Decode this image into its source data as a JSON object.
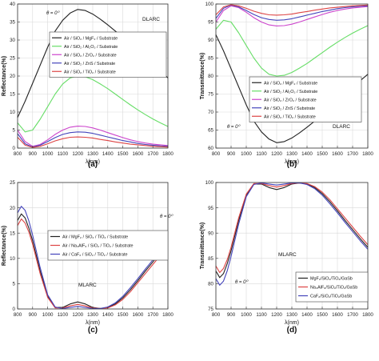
{
  "chart_data": [
    {
      "type": "line",
      "panel_label": "(a)",
      "theta_label": "θ = 0⁰",
      "annotation": "DLARC",
      "xlabel": "λ(nm)",
      "ylabel": "Reflectance(%)",
      "xlim": [
        800,
        1800
      ],
      "ylim": [
        0,
        40
      ],
      "xticks": [
        800,
        900,
        1000,
        1100,
        1200,
        1300,
        1400,
        1500,
        1600,
        1700,
        1800
      ],
      "yticks": [
        0,
        5,
        10,
        15,
        20,
        25,
        30,
        35,
        40
      ],
      "grid": true,
      "legend_position": "upper-center",
      "series": [
        {
          "name": "Air / SiO₂ / MgF₂ / Substrate",
          "color": "#222222",
          "x": [
            800,
            850,
            900,
            950,
            1000,
            1050,
            1100,
            1150,
            1200,
            1250,
            1300,
            1350,
            1400,
            1450,
            1500,
            1550,
            1600,
            1650,
            1700,
            1750,
            1800
          ],
          "y": [
            8.5,
            13,
            18,
            23,
            28,
            32.5,
            35.5,
            37.5,
            38.5,
            38.2,
            37.2,
            35.8,
            34.2,
            32.5,
            30.7,
            28.9,
            27,
            25.1,
            23.2,
            21.3,
            19.5
          ]
        },
        {
          "name": "Air / SiO₂ / Al₂O₃ / Substrate",
          "color": "#66dd66",
          "x": [
            800,
            850,
            900,
            950,
            1000,
            1050,
            1100,
            1150,
            1200,
            1250,
            1300,
            1350,
            1400,
            1450,
            1500,
            1550,
            1600,
            1650,
            1700,
            1750,
            1800
          ],
          "y": [
            7,
            4.5,
            5,
            8,
            11.5,
            15,
            17.8,
            19.5,
            20,
            19.8,
            19,
            17.8,
            16.5,
            15,
            13.5,
            12,
            10.6,
            9.3,
            8.1,
            7,
            6
          ]
        },
        {
          "name": "Air / SiO₂ / ZrO₂ / Substrate",
          "color": "#cc44cc",
          "x": [
            800,
            850,
            900,
            950,
            1000,
            1050,
            1100,
            1150,
            1200,
            1250,
            1300,
            1350,
            1400,
            1450,
            1500,
            1550,
            1600,
            1650,
            1700,
            1750,
            1800
          ],
          "y": [
            5,
            1.8,
            0.5,
            1,
            2.3,
            3.8,
            5,
            5.8,
            6.1,
            6,
            5.6,
            5,
            4.3,
            3.6,
            2.9,
            2.3,
            1.8,
            1.4,
            1.1,
            0.9,
            0.7
          ]
        },
        {
          "name": "Air / SiO₂ / ZnS / Substrate",
          "color": "#4444bb",
          "x": [
            800,
            850,
            900,
            950,
            1000,
            1050,
            1100,
            1150,
            1200,
            1250,
            1300,
            1350,
            1400,
            1450,
            1500,
            1550,
            1600,
            1650,
            1700,
            1750,
            1800
          ],
          "y": [
            4,
            1.2,
            0.3,
            0.8,
            1.8,
            2.9,
            3.8,
            4.3,
            4.5,
            4.4,
            4.1,
            3.6,
            3.1,
            2.6,
            2.1,
            1.7,
            1.3,
            1,
            0.8,
            0.6,
            0.5
          ]
        },
        {
          "name": "Air / SiO₂ / TiO₂ / Substrate",
          "color": "#dd4444",
          "x": [
            800,
            850,
            900,
            950,
            1000,
            1050,
            1100,
            1150,
            1200,
            1250,
            1300,
            1350,
            1400,
            1450,
            1500,
            1550,
            1600,
            1650,
            1700,
            1750,
            1800
          ],
          "y": [
            3,
            0.8,
            0.2,
            0.5,
            1.2,
            2,
            2.6,
            3,
            3.1,
            3,
            2.8,
            2.4,
            2.1,
            1.7,
            1.4,
            1.1,
            0.9,
            0.7,
            0.5,
            0.4,
            0.3
          ]
        }
      ]
    },
    {
      "type": "line",
      "panel_label": "(b)",
      "theta_label": "θ = 0⁰",
      "annotation": "DLARC",
      "xlabel": "λ(nm)",
      "ylabel": "Transmittance(%)",
      "xlim": [
        800,
        1800
      ],
      "ylim": [
        60,
        100
      ],
      "xticks": [
        800,
        900,
        1000,
        1100,
        1200,
        1300,
        1400,
        1500,
        1600,
        1700,
        1800
      ],
      "yticks": [
        60,
        65,
        70,
        75,
        80,
        85,
        90,
        95,
        100
      ],
      "grid": true,
      "legend_position": "lower-left",
      "series": [
        {
          "name": "Air / SiO₂ / MgF₂ / Substrate",
          "color": "#222222",
          "x": [
            800,
            850,
            900,
            950,
            1000,
            1050,
            1100,
            1150,
            1200,
            1250,
            1300,
            1350,
            1400,
            1450,
            1500,
            1550,
            1600,
            1650,
            1700,
            1750,
            1800
          ],
          "y": [
            91.5,
            87,
            82,
            77,
            72,
            67.5,
            64.5,
            62.5,
            61.5,
            61.8,
            62.8,
            64.2,
            65.8,
            67.5,
            69.3,
            71.1,
            73,
            74.9,
            76.8,
            78.7,
            80.5
          ]
        },
        {
          "name": "Air / SiO₂ / Al₂O₃ / Substrate",
          "color": "#66dd66",
          "x": [
            800,
            850,
            900,
            950,
            1000,
            1050,
            1100,
            1150,
            1200,
            1250,
            1300,
            1350,
            1400,
            1450,
            1500,
            1550,
            1600,
            1650,
            1700,
            1750,
            1800
          ],
          "y": [
            93,
            95.5,
            95,
            92,
            88.5,
            85,
            82.2,
            80.5,
            80,
            80.2,
            81,
            82.2,
            83.5,
            85,
            86.5,
            88,
            89.4,
            90.7,
            91.9,
            93,
            94
          ]
        },
        {
          "name": "Air / SiO₂ / ZrO₂ / Substrate",
          "color": "#cc44cc",
          "x": [
            800,
            850,
            900,
            950,
            1000,
            1050,
            1100,
            1150,
            1200,
            1250,
            1300,
            1350,
            1400,
            1450,
            1500,
            1550,
            1600,
            1650,
            1700,
            1750,
            1800
          ],
          "y": [
            95,
            98.2,
            99.5,
            99,
            97.7,
            96.2,
            95,
            94.2,
            93.9,
            94,
            94.4,
            95,
            95.7,
            96.4,
            97.1,
            97.7,
            98.2,
            98.6,
            98.9,
            99.1,
            99.3
          ]
        },
        {
          "name": "Air / SiO₂ / ZnS / Substrate",
          "color": "#4444bb",
          "x": [
            800,
            850,
            900,
            950,
            1000,
            1050,
            1100,
            1150,
            1200,
            1250,
            1300,
            1350,
            1400,
            1450,
            1500,
            1550,
            1600,
            1650,
            1700,
            1750,
            1800
          ],
          "y": [
            96,
            98.8,
            99.7,
            99.2,
            98.2,
            97.1,
            96.2,
            95.7,
            95.5,
            95.6,
            95.9,
            96.4,
            96.9,
            97.4,
            97.9,
            98.3,
            98.7,
            99,
            99.2,
            99.4,
            99.5
          ]
        },
        {
          "name": "Air / SiO₂ / TiO₂ / Substrate",
          "color": "#dd4444",
          "x": [
            800,
            850,
            900,
            950,
            1000,
            1050,
            1100,
            1150,
            1200,
            1250,
            1300,
            1350,
            1400,
            1450,
            1500,
            1550,
            1600,
            1650,
            1700,
            1750,
            1800
          ],
          "y": [
            97,
            99.2,
            99.8,
            99.5,
            98.8,
            98,
            97.4,
            97,
            96.9,
            97,
            97.2,
            97.6,
            97.9,
            98.3,
            98.6,
            98.9,
            99.1,
            99.3,
            99.5,
            99.6,
            99.7
          ]
        }
      ]
    },
    {
      "type": "line",
      "panel_label": "(c)",
      "theta_label": "θ = 0⁰",
      "annotation": "MLARC",
      "xlabel": "λ(nm)",
      "ylabel": "Reflectance(%)",
      "xlim": [
        800,
        1800
      ],
      "ylim": [
        0,
        25
      ],
      "xticks": [
        800,
        900,
        1000,
        1100,
        1200,
        1300,
        1400,
        1500,
        1600,
        1700,
        1800
      ],
      "yticks": [
        0,
        5,
        10,
        15,
        20,
        25
      ],
      "grid": true,
      "legend_position": "upper-right",
      "series": [
        {
          "name": "Air / MgF₂ / SiO₂ / TiO₂ / Substrate",
          "color": "#222222",
          "x": [
            800,
            825,
            850,
            875,
            900,
            950,
            1000,
            1050,
            1100,
            1150,
            1200,
            1250,
            1300,
            1350,
            1400,
            1450,
            1500,
            1550,
            1600,
            1650,
            1700,
            1750,
            1800
          ],
          "y": [
            17.5,
            18.8,
            18,
            16,
            13.5,
            7.5,
            2.5,
            0.3,
            0.3,
            1,
            1.4,
            1,
            0.3,
            0.1,
            0.3,
            1,
            2.2,
            3.8,
            5.6,
            7.5,
            9.3,
            11.1,
            12.8
          ]
        },
        {
          "name": "Air / Na₃AlF₆ / SiO₂ / TiO₂ / Substrate",
          "color": "#dd4444",
          "x": [
            800,
            825,
            850,
            875,
            900,
            950,
            1000,
            1050,
            1100,
            1150,
            1200,
            1250,
            1300,
            1350,
            1400,
            1450,
            1500,
            1550,
            1600,
            1650,
            1700,
            1750,
            1800
          ],
          "y": [
            16.5,
            17.8,
            17,
            15.2,
            12.8,
            7,
            2.3,
            0.2,
            0.2,
            0.6,
            0.9,
            0.6,
            0.2,
            0.1,
            0.2,
            0.8,
            1.9,
            3.4,
            5.2,
            7,
            8.8,
            10.6,
            12.3
          ]
        },
        {
          "name": "Air / CaF₂ / SiO₂ / TiO₂ / Substrate",
          "color": "#4444bb",
          "x": [
            800,
            825,
            850,
            875,
            900,
            950,
            1000,
            1050,
            1100,
            1150,
            1200,
            1250,
            1300,
            1350,
            1400,
            1450,
            1500,
            1550,
            1600,
            1650,
            1700,
            1750,
            1800
          ],
          "y": [
            19,
            20.3,
            19.5,
            17.4,
            14.6,
            8.2,
            2.8,
            0.4,
            0.1,
            0.3,
            0.5,
            0.3,
            0.1,
            0.1,
            0.4,
            1.2,
            2.5,
            4.2,
            6,
            7.9,
            9.7,
            11.5,
            13.2
          ]
        }
      ]
    },
    {
      "type": "line",
      "panel_label": "(d)",
      "theta_label": "θ = 0⁰",
      "annotation": "MLARC",
      "xlabel": "λ(nm)",
      "ylabel": "Transmittance(%)",
      "xlim": [
        800,
        1800
      ],
      "ylim": [
        75,
        100
      ],
      "xticks": [
        800,
        900,
        1000,
        1100,
        1200,
        1300,
        1400,
        1500,
        1600,
        1700,
        1800
      ],
      "yticks": [
        75,
        80,
        85,
        90,
        95,
        100
      ],
      "grid": true,
      "legend_position": "lower-right",
      "series": [
        {
          "name": "MgF₂/SiO₂/TiO₂/GaSb",
          "color": "#222222",
          "x": [
            800,
            825,
            850,
            875,
            900,
            950,
            1000,
            1050,
            1100,
            1150,
            1200,
            1250,
            1300,
            1350,
            1400,
            1450,
            1500,
            1550,
            1600,
            1650,
            1700,
            1750,
            1800
          ],
          "y": [
            82.5,
            81.2,
            82,
            84,
            86.5,
            92.5,
            97.5,
            99.7,
            99.7,
            99,
            98.6,
            99,
            99.7,
            99.9,
            99.7,
            99,
            97.8,
            96.2,
            94.4,
            92.5,
            90.7,
            88.9,
            87.2
          ]
        },
        {
          "name": "Na₃AlF₆/SiO₂/TiO₂/GaSb",
          "color": "#dd4444",
          "x": [
            800,
            825,
            850,
            875,
            900,
            950,
            1000,
            1050,
            1100,
            1150,
            1200,
            1250,
            1300,
            1350,
            1400,
            1450,
            1500,
            1550,
            1600,
            1650,
            1700,
            1750,
            1800
          ],
          "y": [
            83.5,
            82.2,
            83,
            84.8,
            87.2,
            93,
            97.7,
            99.8,
            99.8,
            99.4,
            99.1,
            99.4,
            99.8,
            99.9,
            99.8,
            99.2,
            98.1,
            96.6,
            94.8,
            93,
            91.2,
            89.4,
            87.7
          ]
        },
        {
          "name": "CaF₂/SiO₂/TiO₂/GaSb",
          "color": "#4444bb",
          "x": [
            800,
            825,
            850,
            875,
            900,
            950,
            1000,
            1050,
            1100,
            1150,
            1200,
            1250,
            1300,
            1350,
            1400,
            1450,
            1500,
            1550,
            1600,
            1650,
            1700,
            1750,
            1800
          ],
          "y": [
            81,
            79.7,
            80.5,
            82.6,
            85.4,
            91.8,
            97.2,
            99.6,
            99.9,
            99.7,
            99.5,
            99.7,
            99.9,
            99.9,
            99.6,
            98.8,
            97.5,
            95.8,
            94,
            92.1,
            90.3,
            88.5,
            86.8
          ]
        }
      ]
    }
  ]
}
